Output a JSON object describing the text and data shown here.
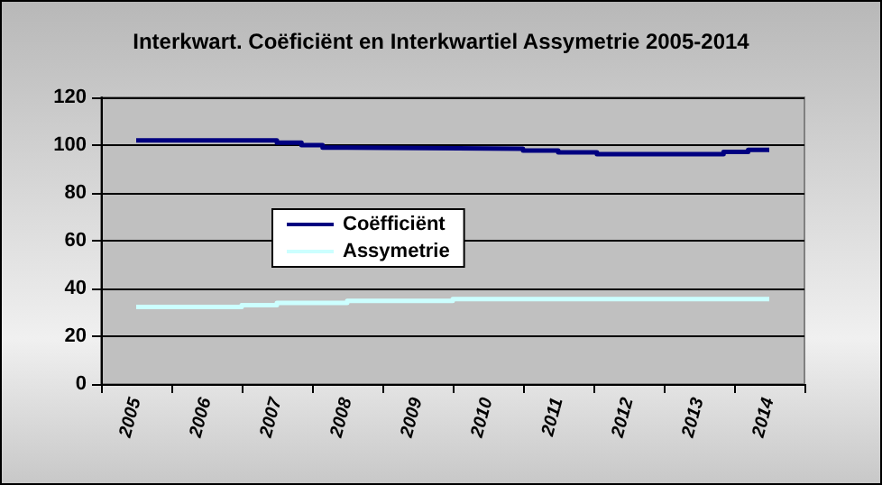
{
  "chart_data": {
    "type": "step",
    "title": "Interkwart. Coëficiënt en Interkwartiel Assymetrie 2005-2014",
    "series": [
      {
        "name": "Coëfficiënt",
        "color": "#000080",
        "x": [
          2005,
          2007.0,
          2007.35,
          2007.65,
          2008.0,
          2010.5,
          2011.0,
          2011.55,
          2013.35,
          2013.7,
          2014.0
        ],
        "values": [
          102,
          101,
          100,
          99,
          98.5,
          97.7,
          97,
          96.2,
          97.2,
          98,
          98
        ]
      },
      {
        "name": "Assymetrie",
        "color": "#ccffff",
        "x": [
          2005,
          2006.5,
          2007.0,
          2008.0,
          2009.5,
          2014.0
        ],
        "values": [
          32.3,
          33,
          34,
          34.8,
          35.6,
          35.6
        ]
      }
    ],
    "xlim": [
      2004.5,
      2014.5
    ],
    "xticks": [
      2005,
      2006,
      2007,
      2008,
      2009,
      2010,
      2011,
      2012,
      2013,
      2014
    ],
    "ylim": [
      0,
      120
    ],
    "yticks": [
      0,
      20,
      40,
      60,
      80,
      100,
      120
    ],
    "grid": "y",
    "legend": "left",
    "marker": "none",
    "line_style": "solid"
  }
}
